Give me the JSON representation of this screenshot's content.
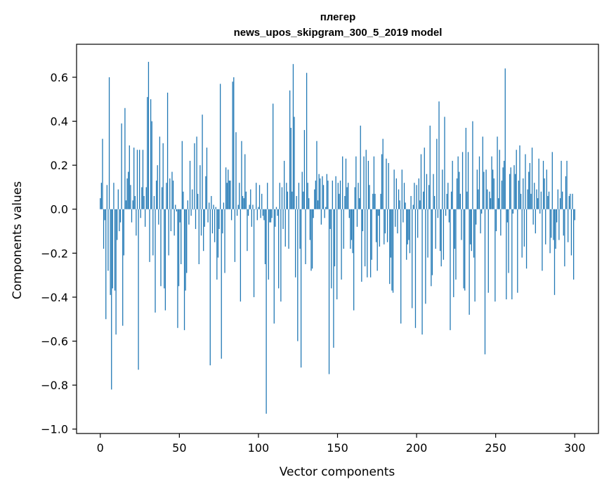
{
  "chart_data": {
    "type": "bar",
    "title_line1": "плегер",
    "title_line2": "news_upos_skipgram_300_5_2019 model",
    "xlabel": "Vector components",
    "ylabel": "Components values",
    "xlim": [
      -15,
      315
    ],
    "ylim": [
      -1.02,
      0.75
    ],
    "xticks": [
      0,
      50,
      100,
      150,
      200,
      250,
      300
    ],
    "xtick_labels": [
      "0",
      "50",
      "100",
      "150",
      "200",
      "250",
      "300"
    ],
    "yticks": [
      -1.0,
      -0.8,
      -0.6,
      -0.4,
      -0.2,
      0.0,
      0.2,
      0.4,
      0.6
    ],
    "ytick_labels": [
      "−1.0",
      "−0.8",
      "−0.6",
      "−0.4",
      "−0.2",
      "0.0",
      "0.2",
      "0.4",
      "0.6"
    ],
    "grid": false,
    "bar_color": "#1f77b4",
    "values": [
      0.05,
      0.12,
      0.32,
      -0.18,
      -0.05,
      -0.5,
      0.11,
      -0.28,
      0.6,
      -0.39,
      -0.82,
      -0.36,
      0.12,
      -0.37,
      -0.57,
      -0.14,
      0.09,
      -0.1,
      -0.06,
      0.39,
      -0.53,
      -0.21,
      0.46,
      0.04,
      0.14,
      0.17,
      0.29,
      0.11,
      -0.06,
      0.04,
      0.28,
      0.06,
      -0.12,
      0.27,
      -0.73,
      0.27,
      -0.04,
      0.1,
      0.27,
      0.06,
      -0.08,
      0.1,
      0.51,
      0.67,
      -0.24,
      0.5,
      0.4,
      -0.21,
      0.06,
      -0.47,
      0.13,
      0.2,
      -0.07,
      0.33,
      -0.35,
      0.1,
      0.3,
      -0.36,
      -0.46,
      0.12,
      0.53,
      -0.21,
      0.14,
      -0.1,
      0.17,
      0.13,
      -0.12,
      0.02,
      -0.01,
      -0.54,
      -0.35,
      -0.06,
      -0.25,
      0.31,
      0.08,
      -0.55,
      -0.37,
      -0.29,
      0.04,
      -0.07,
      0.22,
      -0.03,
      0.09,
      0.0,
      0.3,
      -0.09,
      0.33,
      0.07,
      -0.25,
      0.2,
      -0.12,
      0.43,
      -0.19,
      -0.08,
      0.15,
      0.28,
      -0.06,
      0.03,
      -0.71,
      0.06,
      -0.11,
      0.02,
      -0.15,
      0.01,
      -0.32,
      -0.22,
      -0.09,
      0.57,
      -0.68,
      -0.11,
      0.03,
      -0.29,
      0.19,
      0.12,
      0.18,
      0.13,
      0.13,
      -0.05,
      0.58,
      0.6,
      -0.24,
      0.35,
      -0.03,
      0.02,
      0.12,
      -0.42,
      0.31,
      0.06,
      0.05,
      0.25,
      0.08,
      -0.19,
      -0.03,
      0.02,
      0.09,
      -0.08,
      0.02,
      -0.4,
      0.0,
      0.12,
      -0.05,
      0.01,
      0.11,
      -0.04,
      0.07,
      -0.03,
      -0.05,
      -0.25,
      -0.93,
      0.12,
      -0.32,
      -0.06,
      -0.06,
      -0.04,
      0.48,
      -0.52,
      -0.08,
      0.01,
      -0.03,
      -0.36,
      0.12,
      -0.42,
      0.1,
      -0.09,
      0.22,
      -0.17,
      0.12,
      0.08,
      -0.18,
      0.54,
      0.37,
      0.08,
      0.66,
      0.42,
      -0.31,
      0.06,
      -0.6,
      0.12,
      -0.18,
      -0.72,
      0.17,
      0.08,
      0.36,
      -0.25,
      0.62,
      0.12,
      0.05,
      -0.14,
      -0.28,
      -0.27,
      -0.04,
      0.09,
      0.13,
      0.31,
      0.04,
      0.16,
      0.14,
      -0.07,
      0.15,
      0.11,
      -0.04,
      0.01,
      0.16,
      0.13,
      -0.75,
      -0.09,
      -0.36,
      0.13,
      -0.63,
      -0.26,
      0.15,
      -0.41,
      0.12,
      0.07,
      0.13,
      -0.32,
      0.24,
      -0.18,
      0.06,
      0.23,
      0.1,
      0.12,
      -0.04,
      -0.18,
      -0.14,
      -0.2,
      -0.46,
      0.1,
      0.24,
      -0.08,
      0.12,
      0.05,
      0.38,
      -0.33,
      -0.1,
      0.24,
      -0.26,
      0.27,
      -0.31,
      0.22,
      0.11,
      -0.31,
      -0.23,
      0.07,
      0.24,
      0.07,
      -0.15,
      -0.28,
      -0.03,
      -0.17,
      0.07,
      0.25,
      0.32,
      -0.16,
      -0.11,
      0.23,
      -0.15,
      0.21,
      -0.34,
      -0.22,
      -0.37,
      -0.38,
      0.18,
      -0.08,
      0.14,
      -0.11,
      0.09,
      0.04,
      -0.52,
      0.18,
      -0.06,
      0.12,
      0.03,
      -0.23,
      -0.16,
      -0.14,
      -0.2,
      0.06,
      -0.45,
      0.02,
      0.12,
      -0.54,
      0.11,
      -0.13,
      0.14,
      0.04,
      0.25,
      -0.57,
      0.08,
      0.28,
      -0.43,
      0.16,
      -0.22,
      0.11,
      0.38,
      -0.35,
      -0.3,
      0.16,
      0.06,
      -0.18,
      0.32,
      -0.04,
      0.49,
      -0.19,
      -0.26,
      0.18,
      -0.23,
      0.42,
      -0.03,
      0.07,
      0.12,
      -0.06,
      -0.55,
      0.08,
      0.22,
      -0.4,
      -0.18,
      -0.32,
      0.14,
      0.24,
      0.17,
      0.07,
      -0.14,
      0.26,
      -0.36,
      -0.37,
      0.37,
      0.08,
      0.26,
      -0.48,
      -0.16,
      -0.19,
      0.4,
      -0.22,
      -0.42,
      -0.07,
      0.18,
      0.09,
      0.24,
      -0.11,
      -0.02,
      0.33,
      0.17,
      -0.66,
      0.18,
      0.09,
      -0.38,
      0.08,
      0.05,
      0.24,
      0.18,
      0.14,
      -0.42,
      -0.1,
      0.33,
      0.05,
      0.27,
      -0.12,
      0.13,
      0.19,
      0.22,
      0.64,
      -0.41,
      -0.06,
      -0.29,
      0.16,
      0.19,
      -0.41,
      -0.02,
      0.2,
      0.16,
      0.27,
      -0.38,
      0.13,
      0.29,
      0.07,
      -0.22,
      0.14,
      -0.17,
      0.25,
      -0.27,
      0.09,
      0.17,
      0.21,
      0.07,
      0.28,
      -0.07,
      0.12,
      -0.11,
      0.09,
      0.05,
      0.23,
      -0.02,
      0.08,
      -0.28,
      0.22,
      0.14,
      -0.16,
      0.18,
      0.06,
      0.08,
      -0.2,
      -0.13,
      0.26,
      -0.14,
      -0.39,
      -0.18,
      -0.06,
      0.09,
      -0.14,
      0.05,
      0.22,
      0.08,
      -0.12,
      -0.26,
      0.15,
      0.22,
      -0.15,
      0.06,
      0.07,
      -0.21,
      0.07,
      -0.32,
      -0.05
    ]
  }
}
